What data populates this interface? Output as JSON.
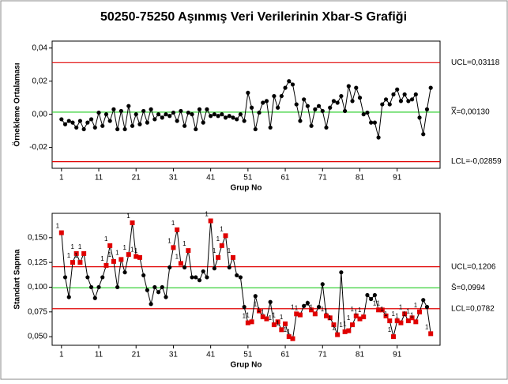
{
  "title": "50250-75250 Aşınmış Veri Verilerinin Xbar-S Grafiği",
  "chart_data": [
    {
      "type": "line",
      "ylabel": "Örnekleme Ortalaması",
      "xlabel": "Grup No",
      "color": "#000000",
      "xlim": [
        -1.5,
        102.5
      ],
      "xticks": [
        1,
        11,
        21,
        31,
        41,
        51,
        61,
        71,
        81,
        91
      ],
      "ylim": [
        -0.0326,
        0.0442
      ],
      "yticks": [
        {
          "value": 0.04,
          "label": "0,04"
        },
        {
          "value": 0.02,
          "label": "0,02"
        },
        {
          "value": 0,
          "label": "0,00"
        },
        {
          "value": -0.02,
          "label": "-0,02"
        }
      ],
      "control_lines": [
        {
          "value": 0.03118,
          "label": "UCL=0,03118",
          "color": "#e00000"
        },
        {
          "value": 0.0013,
          "label": "X̿=0,00130",
          "color": "#22cc22"
        },
        {
          "value": -0.02859,
          "label": "LCL=-0,02859",
          "color": "#e00000"
        }
      ],
      "x": [
        1,
        2,
        3,
        4,
        5,
        6,
        7,
        8,
        9,
        10,
        11,
        12,
        13,
        14,
        15,
        16,
        17,
        18,
        19,
        20,
        21,
        22,
        23,
        24,
        25,
        26,
        27,
        28,
        29,
        30,
        31,
        32,
        33,
        34,
        35,
        36,
        37,
        38,
        39,
        40,
        41,
        42,
        43,
        44,
        45,
        46,
        47,
        48,
        49,
        50,
        51,
        52,
        53,
        54,
        55,
        56,
        57,
        58,
        59,
        60,
        61,
        62,
        63,
        64,
        65,
        66,
        67,
        68,
        69,
        70,
        71,
        72,
        73,
        74,
        75,
        76,
        77,
        78,
        79,
        80,
        81,
        82,
        83,
        84,
        85,
        86,
        87,
        88,
        89,
        90,
        91,
        92,
        93,
        94,
        95,
        96,
        97,
        98,
        99,
        100
      ],
      "values": [
        -0.003,
        -0.006,
        -0.004,
        -0.005,
        -0.008,
        -0.004,
        -0.009,
        -0.005,
        -0.003,
        -0.008,
        0.001,
        -0.007,
        0.0,
        -0.004,
        0.003,
        -0.009,
        0.002,
        -0.009,
        0.005,
        -0.007,
        0.0,
        -0.006,
        0.002,
        -0.005,
        0.003,
        -0.003,
        0.0,
        -0.002,
        0.0,
        -0.001,
        0.001,
        -0.004,
        0.002,
        -0.007,
        0.001,
        0.0,
        -0.009,
        0.003,
        -0.005,
        0.003,
        -0.001,
        0.0,
        -0.001,
        0.0,
        -0.002,
        -0.001,
        -0.002,
        -0.003,
        0.0,
        -0.004,
        0.013,
        0.004,
        -0.009,
        0.001,
        0.007,
        0.008,
        -0.008,
        0.011,
        0.004,
        0.011,
        0.016,
        0.02,
        0.018,
        0.006,
        -0.004,
        0.009,
        0.005,
        -0.007,
        0.003,
        0.005,
        0.002,
        -0.008,
        0.004,
        0.008,
        0.007,
        0.011,
        0.002,
        0.017,
        0.008,
        0.016,
        0.01,
        0.0,
        0.001,
        -0.005,
        -0.005,
        -0.014,
        0.006,
        0.009,
        0.006,
        0.012,
        0.015,
        0.008,
        0.012,
        0.008,
        0.009,
        0.012,
        -0.002,
        -0.012,
        0.003,
        0.016
      ]
    },
    {
      "type": "line",
      "ylabel": "Standart Sapma",
      "xlabel": "Grup No",
      "color": "#000000",
      "flag_color": "#e00000",
      "xlim": [
        -1.5,
        102.5
      ],
      "xticks": [
        1,
        11,
        21,
        31,
        41,
        51,
        61,
        71,
        81,
        91
      ],
      "ylim": [
        0.0413,
        0.1746
      ],
      "yticks": [
        {
          "value": 0.15,
          "label": "0,150"
        },
        {
          "value": 0.125,
          "label": "0,125"
        },
        {
          "value": 0.1,
          "label": "0,100"
        },
        {
          "value": 0.075,
          "label": "0,075"
        },
        {
          "value": 0.05,
          "label": "0,050"
        }
      ],
      "control_lines": [
        {
          "value": 0.1206,
          "label": "UCL=0,1206",
          "color": "#e00000"
        },
        {
          "value": 0.0994,
          "label": "S̄=0,0994",
          "color": "#22cc22"
        },
        {
          "value": 0.0782,
          "label": "LCL=0,0782",
          "color": "#e00000"
        }
      ],
      "x": [
        1,
        2,
        3,
        4,
        5,
        6,
        7,
        8,
        9,
        10,
        11,
        12,
        13,
        14,
        15,
        16,
        17,
        18,
        19,
        20,
        21,
        22,
        23,
        24,
        25,
        26,
        27,
        28,
        29,
        30,
        31,
        32,
        33,
        34,
        35,
        36,
        37,
        38,
        39,
        40,
        41,
        42,
        43,
        44,
        45,
        46,
        47,
        48,
        49,
        50,
        51,
        52,
        53,
        54,
        55,
        56,
        57,
        58,
        59,
        60,
        61,
        62,
        63,
        64,
        65,
        66,
        67,
        68,
        69,
        70,
        71,
        72,
        73,
        74,
        75,
        76,
        77,
        78,
        79,
        80,
        81,
        82,
        83,
        84,
        85,
        86,
        87,
        88,
        89,
        90,
        91,
        92,
        93,
        94,
        95,
        96,
        97,
        98,
        99,
        100
      ],
      "values": [
        0.155,
        0.11,
        0.09,
        0.125,
        0.134,
        0.125,
        0.134,
        0.11,
        0.1,
        0.089,
        0.1,
        0.11,
        0.122,
        0.142,
        0.126,
        0.1,
        0.128,
        0.115,
        0.133,
        0.165,
        0.131,
        0.13,
        0.112,
        0.097,
        0.083,
        0.1,
        0.095,
        0.1,
        0.09,
        0.12,
        0.14,
        0.158,
        0.124,
        0.12,
        0.137,
        0.11,
        0.11,
        0.107,
        0.116,
        0.11,
        0.167,
        0.119,
        0.13,
        0.142,
        0.152,
        0.12,
        0.13,
        0.112,
        0.11,
        0.08,
        0.064,
        0.065,
        0.091,
        0.076,
        0.07,
        0.068,
        0.085,
        0.062,
        0.065,
        0.057,
        0.063,
        0.05,
        0.048,
        0.073,
        0.072,
        0.081,
        0.084,
        0.077,
        0.073,
        0.08,
        0.103,
        0.071,
        0.069,
        0.062,
        0.052,
        0.115,
        0.055,
        0.056,
        0.062,
        0.071,
        0.068,
        0.07,
        0.092,
        0.088,
        0.092,
        0.077,
        0.077,
        0.071,
        0.066,
        0.05,
        0.066,
        0.064,
        0.073,
        0.066,
        0.069,
        0.065,
        0.075,
        0.087,
        0.08,
        0.053
      ],
      "flag_labels": [
        "1",
        null,
        null,
        "1",
        "1",
        "1",
        "1",
        null,
        null,
        null,
        null,
        null,
        "1",
        "1",
        "1",
        null,
        "1",
        null,
        "1",
        "1",
        "1",
        "1",
        null,
        null,
        null,
        null,
        null,
        null,
        null,
        null,
        "1",
        "1",
        "1",
        null,
        "1",
        null,
        null,
        null,
        null,
        null,
        "1",
        null,
        "1",
        "1",
        "1",
        null,
        "1",
        null,
        null,
        null,
        "1",
        "1",
        null,
        "1",
        "1",
        "1",
        null,
        "1",
        "1",
        "1",
        "1",
        "1",
        "1",
        "1",
        "1",
        null,
        null,
        "1",
        "1",
        null,
        null,
        "1",
        "1",
        "1",
        "1",
        null,
        "1",
        "1",
        "1",
        "1",
        "1",
        "1",
        null,
        null,
        null,
        "1",
        "1",
        "1",
        "1",
        "1",
        "1",
        "1",
        "1",
        "1",
        "1",
        "1",
        "1",
        null,
        null,
        "1"
      ]
    }
  ]
}
